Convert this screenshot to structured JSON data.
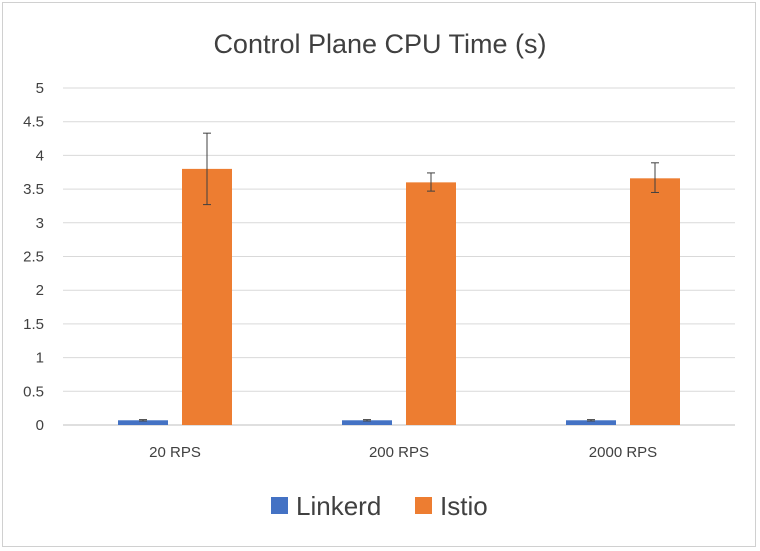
{
  "chart_data": {
    "type": "bar",
    "title": "Control Plane CPU Time (s)",
    "xlabel": "",
    "ylabel": "",
    "categories": [
      "20 RPS",
      "200 RPS",
      "2000 RPS"
    ],
    "ylim": [
      0,
      5
    ],
    "yticks": [
      "0",
      "0.5",
      "1",
      "1.5",
      "2",
      "2.5",
      "3",
      "3.5",
      "4",
      "4.5",
      "5"
    ],
    "grid": true,
    "legend_position": "bottom",
    "series": [
      {
        "name": "Linkerd",
        "color": "#4472C4",
        "values": [
          0.07,
          0.07,
          0.07
        ],
        "error": [
          [
            0.06,
            0.08
          ],
          [
            0.06,
            0.08
          ],
          [
            0.06,
            0.08
          ]
        ]
      },
      {
        "name": "Istio",
        "color": "#ED7D31",
        "values": [
          3.8,
          3.6,
          3.66
        ],
        "error": [
          [
            3.27,
            4.33
          ],
          [
            3.47,
            3.74
          ],
          [
            3.45,
            3.89
          ]
        ]
      }
    ]
  }
}
